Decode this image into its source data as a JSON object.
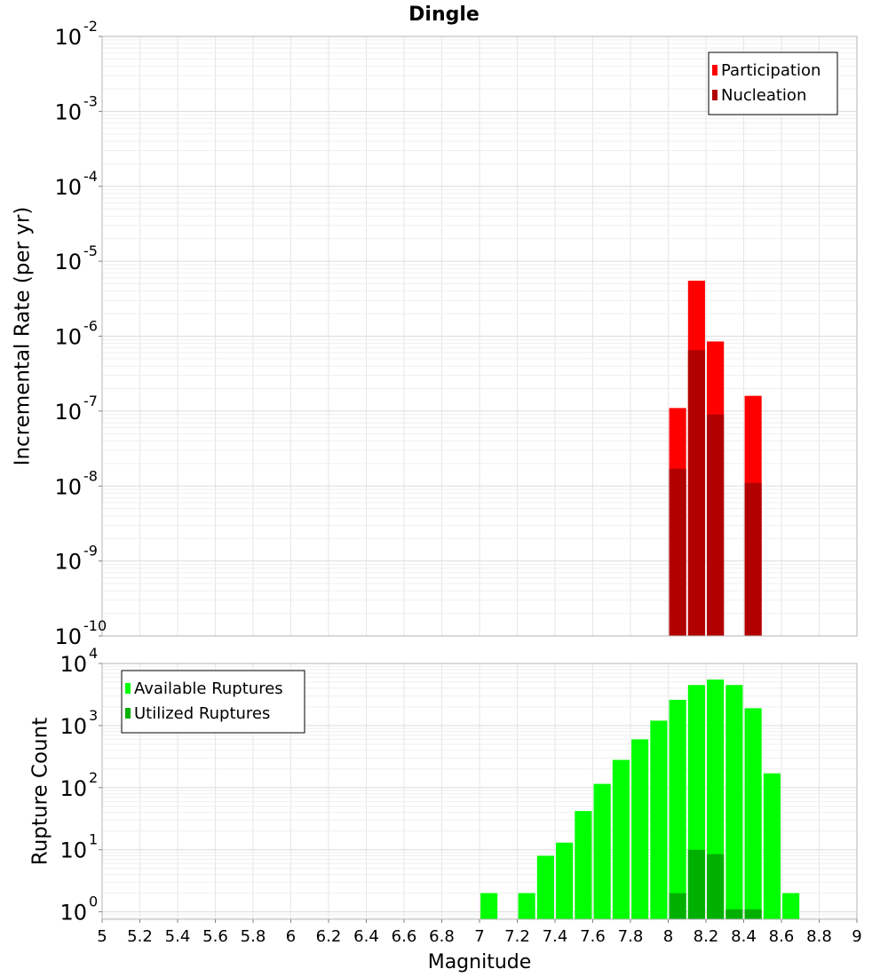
{
  "title": "Dingle",
  "x_axis": {
    "label": "Magnitude",
    "range": [
      5,
      9
    ],
    "ticks": [
      5,
      5.2,
      5.4,
      5.6,
      5.8,
      6,
      6.2,
      6.4,
      6.6,
      6.8,
      7,
      7.2,
      7.4,
      7.6,
      7.8,
      8,
      8.2,
      8.4,
      8.6,
      8.8,
      9
    ],
    "tick_labels": [
      "5",
      "5.2",
      "5.4",
      "5.6",
      "5.8",
      "6",
      "6.2",
      "6.4",
      "6.6",
      "6.8",
      "7",
      "7.2",
      "7.4",
      "7.6",
      "7.8",
      "8",
      "8.2",
      "8.4",
      "8.6",
      "8.8",
      "9"
    ]
  },
  "colors": {
    "participation": "#ff0000",
    "nucleation": "#b00000",
    "available": "#00ff00",
    "utilized": "#00b000",
    "grid": "#e6e6e6",
    "frame": "#b4b4b4"
  },
  "chart_data": [
    {
      "type": "bar",
      "name": "rate-panel",
      "ylabel": "Incremental Rate (per yr)",
      "yscale": "log",
      "ylim_exp": [
        -10,
        -2
      ],
      "y_tick_bases": [
        "10",
        "10",
        "10",
        "10",
        "10",
        "10",
        "10",
        "10",
        "10"
      ],
      "y_tick_exponents": [
        "-10",
        "-9",
        "-8",
        "-7",
        "-6",
        "-5",
        "-4",
        "-3",
        "-2"
      ],
      "legend_position": "top-right",
      "series": [
        {
          "name": "Participation",
          "color_key": "participation",
          "x": [
            8.05,
            8.15,
            8.25,
            8.45
          ],
          "values": [
            1.1e-07,
            5.5e-06,
            8.5e-07,
            1.6e-07
          ]
        },
        {
          "name": "Nucleation",
          "color_key": "nucleation",
          "x": [
            8.05,
            8.15,
            8.25,
            8.45
          ],
          "values": [
            1.7e-08,
            6.5e-07,
            9e-08,
            1.1e-08
          ]
        }
      ]
    },
    {
      "type": "bar",
      "name": "count-panel",
      "ylabel": "Rupture Count",
      "yscale": "log",
      "ylim_exp": [
        -0.12,
        4
      ],
      "y_tick_bases": [
        "10",
        "10",
        "10",
        "10",
        "10"
      ],
      "y_tick_exponents": [
        "0",
        "1",
        "2",
        "3",
        "4"
      ],
      "legend_position": "top-left",
      "series": [
        {
          "name": "Available Ruptures",
          "color_key": "available",
          "x": [
            7.05,
            7.25,
            7.35,
            7.45,
            7.55,
            7.65,
            7.75,
            7.85,
            7.95,
            8.05,
            8.15,
            8.25,
            8.35,
            8.45,
            8.55,
            8.65
          ],
          "values": [
            2,
            2,
            8,
            13,
            42,
            115,
            280,
            600,
            1200,
            2600,
            4500,
            5500,
            4500,
            1900,
            170,
            2
          ]
        },
        {
          "name": "Utilized Ruptures",
          "color_key": "utilized",
          "x": [
            8.05,
            8.15,
            8.25,
            8.35,
            8.45
          ],
          "values": [
            2,
            10,
            8.5,
            1.1,
            1.1
          ]
        }
      ]
    }
  ]
}
